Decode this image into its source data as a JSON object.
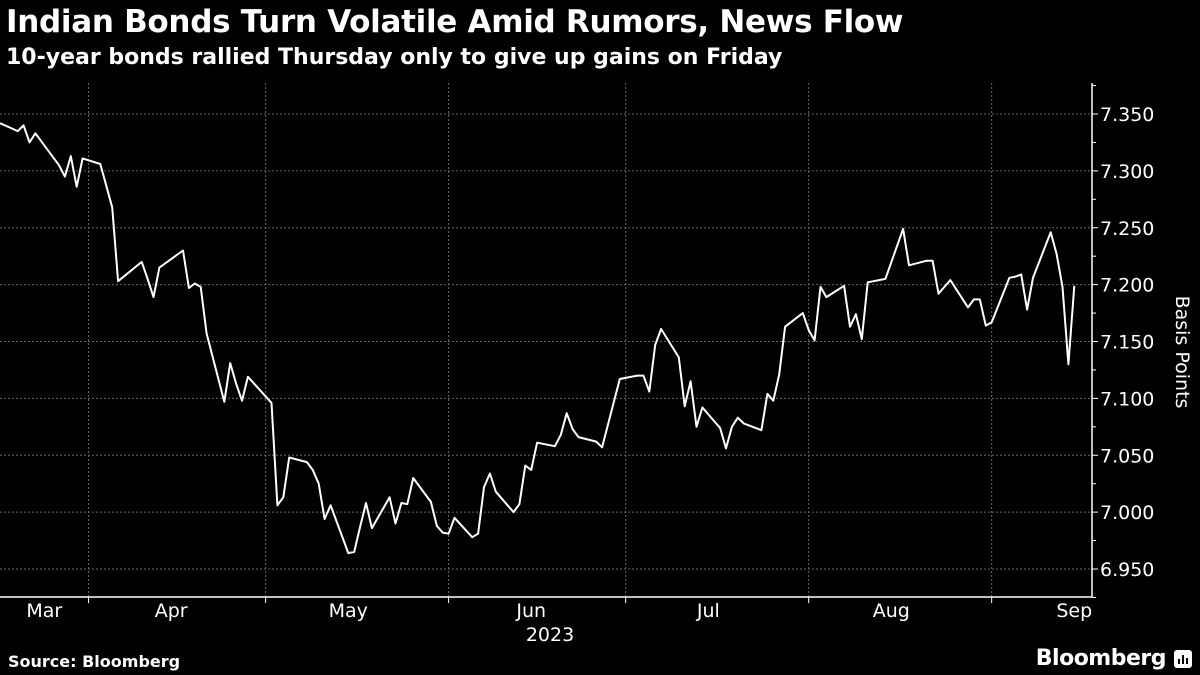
{
  "title": "Indian Bonds Turn Volatile Amid Rumors, News Flow",
  "subtitle": "10-year bonds rallied Thursday only to give up gains on Friday",
  "source": "Source: Bloomberg",
  "brand": "Bloomberg",
  "chart_data": {
    "type": "line",
    "title": "Indian Bonds Turn Volatile Amid Rumors, News Flow",
    "subtitle": "10-year bonds rallied Thursday only to give up gains on Friday",
    "xlabel": "2023",
    "ylabel": "Basis Points",
    "x_tick_labels": [
      "Mar",
      "Apr",
      "May",
      "Jun",
      "Jul",
      "Aug",
      "Sep"
    ],
    "y_tick_labels": [
      "7.350",
      "7.300",
      "7.250",
      "7.200",
      "7.150",
      "7.100",
      "7.050",
      "7.000",
      "6.950"
    ],
    "ylim": [
      6.925,
      7.375
    ],
    "xlim": [
      "2023-03-17",
      "2023-09-18"
    ],
    "grid": true,
    "y_axis_side": "right",
    "line_color": "#ffffff",
    "background": "#000000",
    "x": [
      "2023-03-17",
      "2023-03-20",
      "2023-03-21",
      "2023-03-22",
      "2023-03-23",
      "2023-03-24",
      "2023-03-27",
      "2023-03-28",
      "2023-03-29",
      "2023-03-30",
      "2023-03-31",
      "2023-04-03",
      "2023-04-05",
      "2023-04-06",
      "2023-04-10",
      "2023-04-11",
      "2023-04-12",
      "2023-04-13",
      "2023-04-17",
      "2023-04-18",
      "2023-04-19",
      "2023-04-20",
      "2023-04-21",
      "2023-04-24",
      "2023-04-25",
      "2023-04-26",
      "2023-04-27",
      "2023-04-28",
      "2023-05-02",
      "2023-05-03",
      "2023-05-04",
      "2023-05-05",
      "2023-05-08",
      "2023-05-09",
      "2023-05-10",
      "2023-05-11",
      "2023-05-12",
      "2023-05-15",
      "2023-05-16",
      "2023-05-17",
      "2023-05-18",
      "2023-05-19",
      "2023-05-22",
      "2023-05-23",
      "2023-05-24",
      "2023-05-25",
      "2023-05-26",
      "2023-05-29",
      "2023-05-30",
      "2023-05-31",
      "2023-06-01",
      "2023-06-02",
      "2023-06-05",
      "2023-06-06",
      "2023-06-07",
      "2023-06-08",
      "2023-06-09",
      "2023-06-12",
      "2023-06-13",
      "2023-06-14",
      "2023-06-15",
      "2023-06-16",
      "2023-06-19",
      "2023-06-20",
      "2023-06-21",
      "2023-06-22",
      "2023-06-23",
      "2023-06-26",
      "2023-06-27",
      "2023-06-30",
      "2023-07-03",
      "2023-07-04",
      "2023-07-05",
      "2023-07-06",
      "2023-07-07",
      "2023-07-10",
      "2023-07-11",
      "2023-07-12",
      "2023-07-13",
      "2023-07-14",
      "2023-07-17",
      "2023-07-18",
      "2023-07-19",
      "2023-07-20",
      "2023-07-21",
      "2023-07-24",
      "2023-07-25",
      "2023-07-26",
      "2023-07-27",
      "2023-07-28",
      "2023-07-31",
      "2023-08-01",
      "2023-08-02",
      "2023-08-03",
      "2023-08-04",
      "2023-08-07",
      "2023-08-08",
      "2023-08-09",
      "2023-08-10",
      "2023-08-11",
      "2023-08-14",
      "2023-08-17",
      "2023-08-18",
      "2023-08-21",
      "2023-08-22",
      "2023-08-23",
      "2023-08-24",
      "2023-08-25",
      "2023-08-28",
      "2023-08-29",
      "2023-08-30",
      "2023-08-31",
      "2023-09-01",
      "2023-09-04",
      "2023-09-05",
      "2023-09-06",
      "2023-09-07",
      "2023-09-08",
      "2023-09-11",
      "2023-09-12",
      "2023-09-13",
      "2023-09-14",
      "2023-09-15"
    ],
    "values": [
      7.342,
      7.335,
      7.34,
      7.325,
      7.333,
      7.326,
      7.305,
      7.295,
      7.313,
      7.286,
      7.311,
      7.306,
      7.268,
      7.203,
      7.22,
      7.205,
      7.189,
      7.215,
      7.23,
      7.197,
      7.201,
      7.198,
      7.157,
      7.097,
      7.131,
      7.113,
      7.098,
      7.119,
      7.096,
      7.006,
      7.013,
      7.048,
      7.044,
      7.037,
      7.025,
      6.994,
      7.006,
      6.964,
      6.965,
      6.987,
      7.008,
      6.986,
      7.013,
      6.99,
      7.008,
      7.007,
      7.03,
      7.009,
      6.988,
      6.982,
      6.981,
      6.995,
      6.978,
      6.981,
      7.022,
      7.034,
      7.018,
      7.0,
      7.007,
      7.041,
      7.037,
      7.061,
      7.058,
      7.068,
      7.087,
      7.073,
      7.066,
      7.062,
      7.057,
      7.117,
      7.12,
      7.12,
      7.106,
      7.147,
      7.161,
      7.136,
      7.093,
      7.115,
      7.075,
      7.092,
      7.074,
      7.056,
      7.075,
      7.083,
      7.078,
      7.072,
      7.104,
      7.098,
      7.121,
      7.163,
      7.175,
      7.16,
      7.151,
      7.198,
      7.189,
      7.199,
      7.163,
      7.174,
      7.152,
      7.202,
      7.205,
      7.249,
      7.217,
      7.221,
      7.221,
      7.192,
      7.198,
      7.204,
      7.18,
      7.187,
      7.187,
      7.164,
      7.167,
      7.206,
      7.207,
      7.209,
      7.178,
      7.206,
      7.246,
      7.227,
      7.198,
      7.13,
      7.199
    ]
  }
}
